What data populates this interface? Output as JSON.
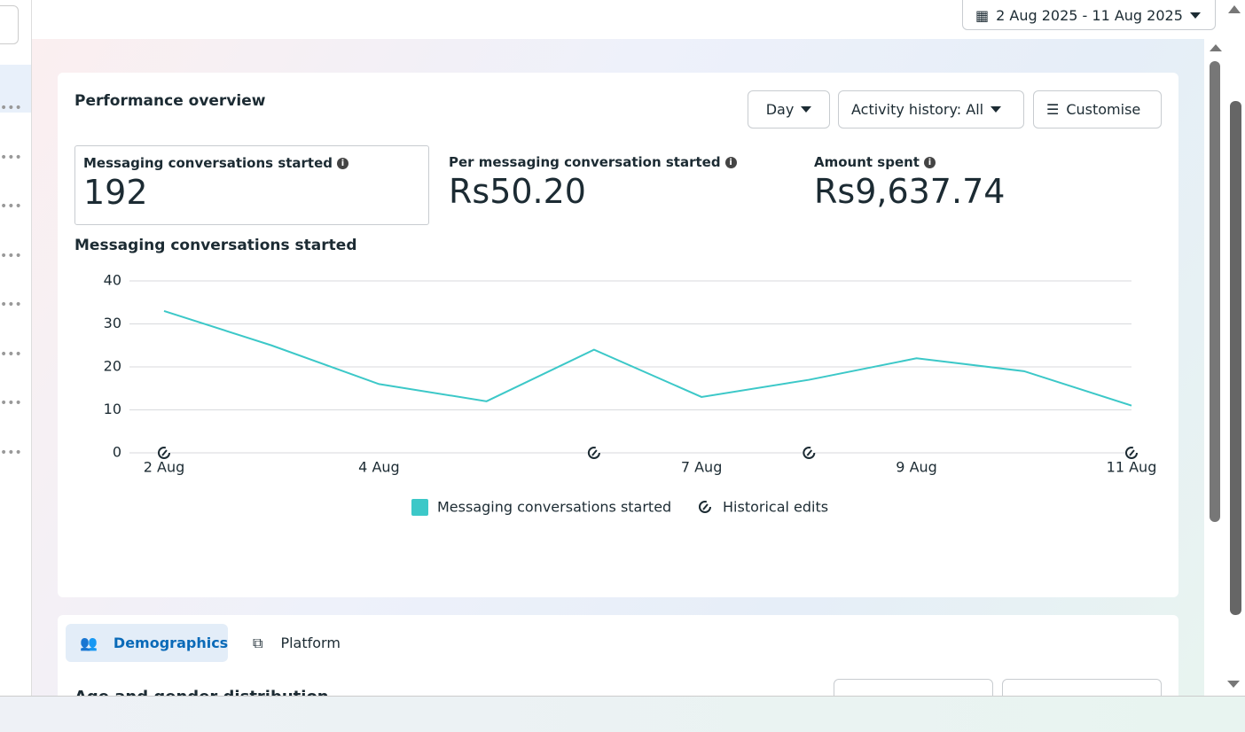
{
  "date_range": "2 Aug 2025 - 11 Aug 2025",
  "overview": {
    "title": "Performance overview",
    "controls": [
      "Day",
      "Activity history: All",
      "Customise"
    ],
    "metrics": [
      {
        "label": "Messaging conversations started",
        "value": "192"
      },
      {
        "label": "Per messaging conversation started",
        "value": "Rs50.20"
      },
      {
        "label": "Amount spent",
        "value": "Rs9,637.74"
      }
    ],
    "chart": {
      "type": "line",
      "title": "Messaging conversations started",
      "categories": [
        "2 Aug",
        null,
        "4 Aug",
        null,
        null,
        "7 Aug",
        null,
        "9 Aug",
        null,
        "11 Aug"
      ],
      "series": [
        {
          "name": "Messaging conversations started",
          "color": "#3cc8c8",
          "values": [
            33,
            25,
            16,
            12,
            24,
            13,
            17,
            22,
            19,
            11
          ]
        }
      ],
      "ylim": [
        0,
        40
      ],
      "yticks": [
        0,
        10,
        20,
        30,
        40
      ],
      "grid": true,
      "historical_edits": {
        "name": "Historical edits",
        "categories": [
          0,
          4,
          6,
          9
        ]
      }
    }
  },
  "breakdown": {
    "tabs": [
      "Demographics",
      "Platform"
    ],
    "section_title": "Age and gender distribution"
  }
}
